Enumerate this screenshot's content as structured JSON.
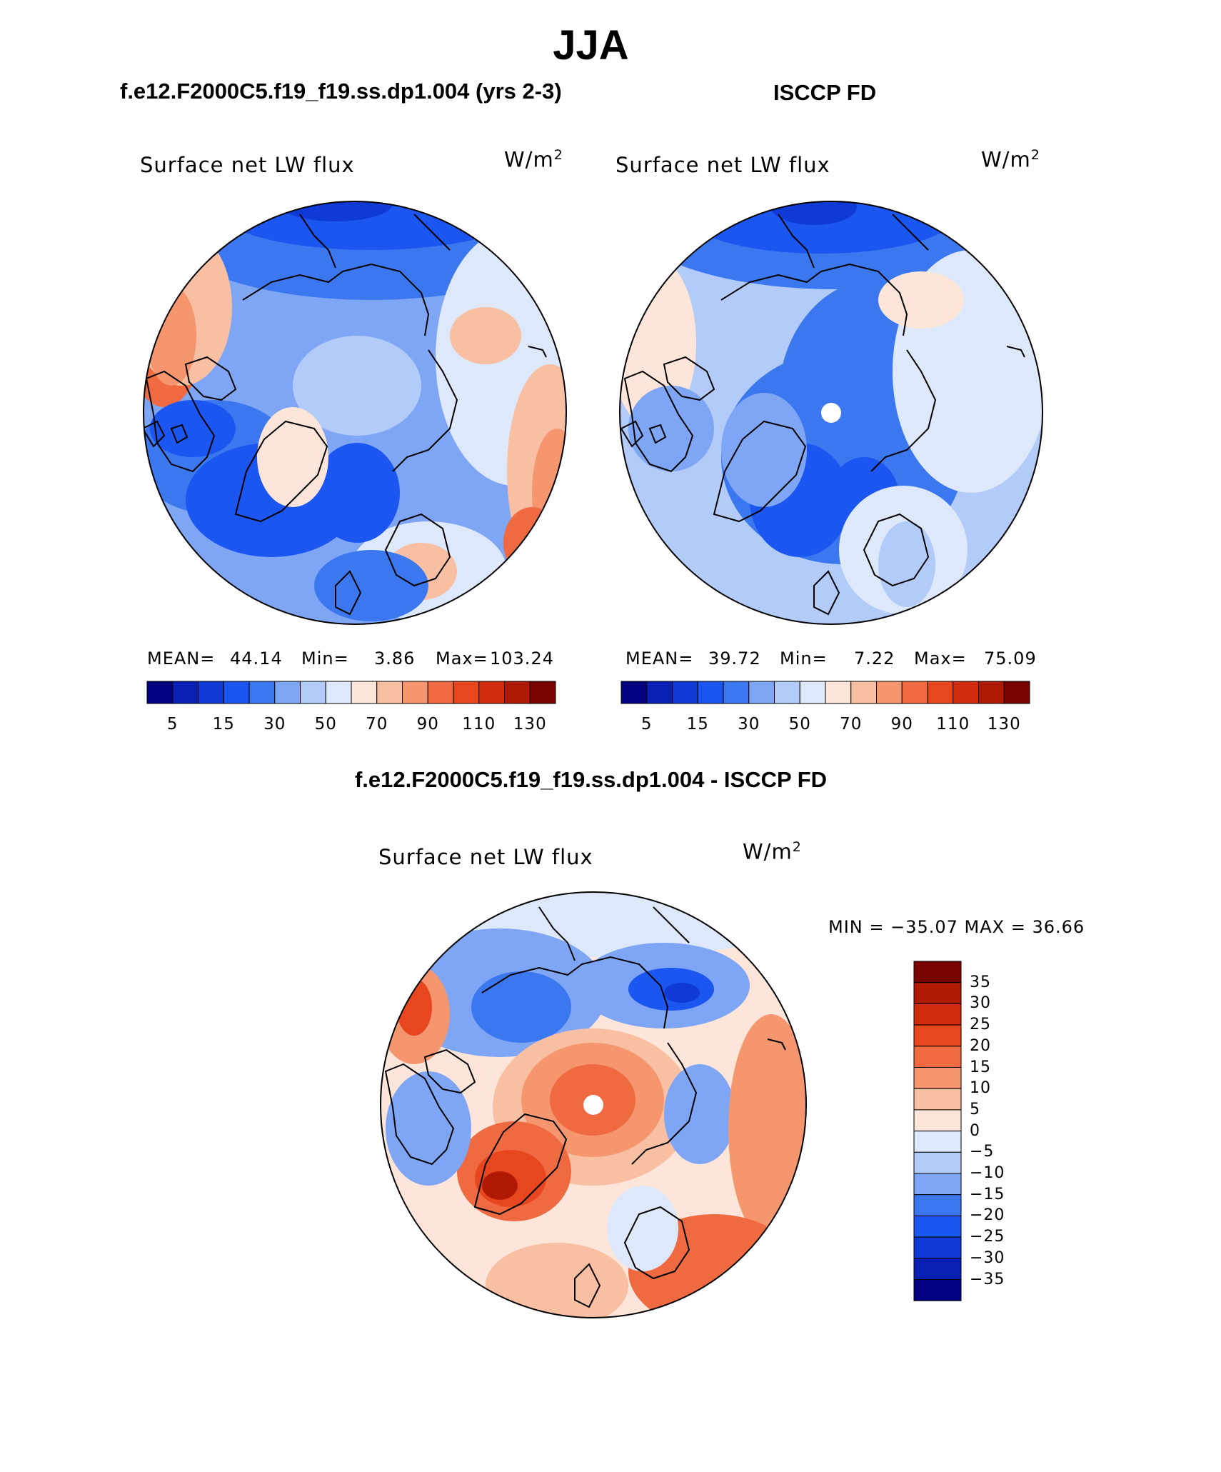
{
  "figure": {
    "season": "JJA",
    "colors": {
      "seq": [
        "#000080",
        "#0a1fb4",
        "#0f3ad6",
        "#1a56ef",
        "#3b78f0",
        "#7ea6f5",
        "#b2cbf9",
        "#dde8fb",
        "#fde6d9",
        "#f9bfa3",
        "#f5966f",
        "#ef6a40",
        "#e8461f",
        "#d22c0f",
        "#b01a05",
        "#7a0402"
      ],
      "div": [
        "#000080",
        "#0a1fb4",
        "#0f3ad6",
        "#1a56ef",
        "#3b78f0",
        "#7ea6f5",
        "#b2cbf9",
        "#dde8fb",
        "#fde6d9",
        "#f9bfa3",
        "#f5966f",
        "#ef6a40",
        "#e8461f",
        "#d22c0f",
        "#b01a05",
        "#7a0402"
      ]
    }
  },
  "panels": {
    "model": {
      "title": "f.e12.F2000C5.f19_f19.ss.dp1.004 (yrs 2-3)",
      "variable": "Surface net LW flux",
      "units_base": "W/m",
      "units_exp": "2",
      "mean_label": "MEAN=",
      "mean": "44.14",
      "min_label": "Min=",
      "min": "3.86",
      "max_label": "Max=",
      "max": "103.24",
      "colorbar_ticks": [
        "5",
        "15",
        "30",
        "50",
        "70",
        "90",
        "110",
        "130"
      ]
    },
    "obs": {
      "title": "ISCCP FD",
      "variable": "Surface net LW flux",
      "units_base": "W/m",
      "units_exp": "2",
      "mean_label": "MEAN=",
      "mean": "39.72",
      "min_label": "Min=",
      "min": "7.22",
      "max_label": "Max=",
      "max": "75.09",
      "colorbar_ticks": [
        "5",
        "15",
        "30",
        "50",
        "70",
        "90",
        "110",
        "130"
      ]
    },
    "diff": {
      "title": "f.e12.F2000C5.f19_f19.ss.dp1.004 - ISCCP FD",
      "variable": "Surface net LW flux",
      "units_base": "W/m",
      "units_exp": "2",
      "minmax": "MIN = −35.07 MAX =   36.66",
      "colorbar_labels": [
        "35",
        "30",
        "25",
        "20",
        "15",
        "10",
        "5",
        "0",
        "−5",
        "−10",
        "−15",
        "−20",
        "−25",
        "−30",
        "−35"
      ]
    }
  }
}
